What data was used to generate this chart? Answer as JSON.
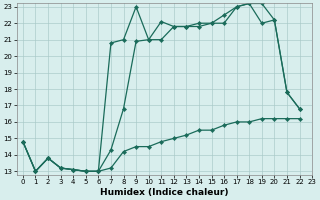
{
  "xlabel": "Humidex (Indice chaleur)",
  "bg_color": "#d8eeed",
  "line_color": "#1a6b5a",
  "xlim": [
    -0.5,
    23
  ],
  "ylim": [
    12.8,
    23.2
  ],
  "xticks": [
    0,
    1,
    2,
    3,
    4,
    5,
    6,
    7,
    8,
    9,
    10,
    11,
    12,
    13,
    14,
    15,
    16,
    17,
    18,
    19,
    20,
    21,
    22,
    23
  ],
  "yticks": [
    13,
    14,
    15,
    16,
    17,
    18,
    19,
    20,
    21,
    22,
    23
  ],
  "line1_x": [
    0,
    1,
    2,
    3,
    4,
    5,
    6,
    7,
    8,
    9,
    10,
    11,
    12,
    13,
    14,
    15,
    16,
    17,
    18,
    19,
    20,
    21,
    22
  ],
  "line1_y": [
    14.8,
    13.0,
    13.8,
    13.2,
    13.1,
    13.0,
    13.0,
    20.8,
    21.0,
    23.0,
    21.0,
    22.1,
    21.8,
    21.8,
    22.0,
    22.0,
    22.5,
    23.0,
    23.2,
    22.0,
    22.2,
    17.8,
    16.8
  ],
  "line2_x": [
    0,
    1,
    2,
    3,
    4,
    5,
    6,
    7,
    8,
    9,
    10,
    11,
    12,
    13,
    14,
    15,
    16,
    17,
    18,
    19,
    20,
    21,
    22
  ],
  "line2_y": [
    14.8,
    13.0,
    13.8,
    13.2,
    13.1,
    13.0,
    13.0,
    14.3,
    16.8,
    20.9,
    21.0,
    21.0,
    21.8,
    21.8,
    21.8,
    22.0,
    22.0,
    23.0,
    23.2,
    23.2,
    22.2,
    17.8,
    16.8
  ],
  "line3_x": [
    0,
    1,
    2,
    3,
    4,
    5,
    6,
    7,
    8,
    9,
    10,
    11,
    12,
    13,
    14,
    15,
    16,
    17,
    18,
    19,
    20,
    21,
    22
  ],
  "line3_y": [
    14.8,
    13.0,
    13.8,
    13.2,
    13.1,
    13.0,
    13.0,
    13.2,
    14.2,
    14.5,
    14.5,
    14.8,
    15.0,
    15.2,
    15.5,
    15.5,
    15.8,
    16.0,
    16.0,
    16.2,
    16.2,
    16.2,
    16.2
  ],
  "marker_size": 2.2,
  "linewidth": 0.9,
  "tick_fontsize": 5.0,
  "xlabel_fontsize": 6.5
}
